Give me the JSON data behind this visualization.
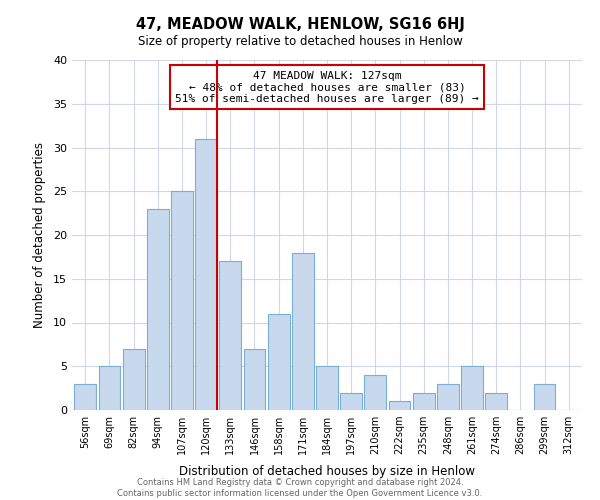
{
  "title": "47, MEADOW WALK, HENLOW, SG16 6HJ",
  "subtitle": "Size of property relative to detached houses in Henlow",
  "xlabel": "Distribution of detached houses by size in Henlow",
  "ylabel": "Number of detached properties",
  "bar_labels": [
    "56sqm",
    "69sqm",
    "82sqm",
    "94sqm",
    "107sqm",
    "120sqm",
    "133sqm",
    "146sqm",
    "158sqm",
    "171sqm",
    "184sqm",
    "197sqm",
    "210sqm",
    "222sqm",
    "235sqm",
    "248sqm",
    "261sqm",
    "274sqm",
    "286sqm",
    "299sqm",
    "312sqm"
  ],
  "bar_values": [
    3,
    5,
    7,
    23,
    25,
    31,
    17,
    7,
    11,
    18,
    5,
    2,
    4,
    1,
    2,
    3,
    5,
    2,
    0,
    3,
    0
  ],
  "bar_color": "#c8d9ee",
  "bar_edge_color": "#7aafd4",
  "vline_x_index": 5,
  "vline_color": "#cc0000",
  "annotation_lines": [
    "47 MEADOW WALK: 127sqm",
    "← 48% of detached houses are smaller (83)",
    "51% of semi-detached houses are larger (89) →"
  ],
  "annotation_box_edge_color": "#cc0000",
  "ylim": [
    0,
    40
  ],
  "yticks": [
    0,
    5,
    10,
    15,
    20,
    25,
    30,
    35,
    40
  ],
  "footnote_line1": "Contains HM Land Registry data © Crown copyright and database right 2024.",
  "footnote_line2": "Contains public sector information licensed under the Open Government Licence v3.0.",
  "background_color": "#ffffff",
  "grid_color": "#d0d8e8"
}
